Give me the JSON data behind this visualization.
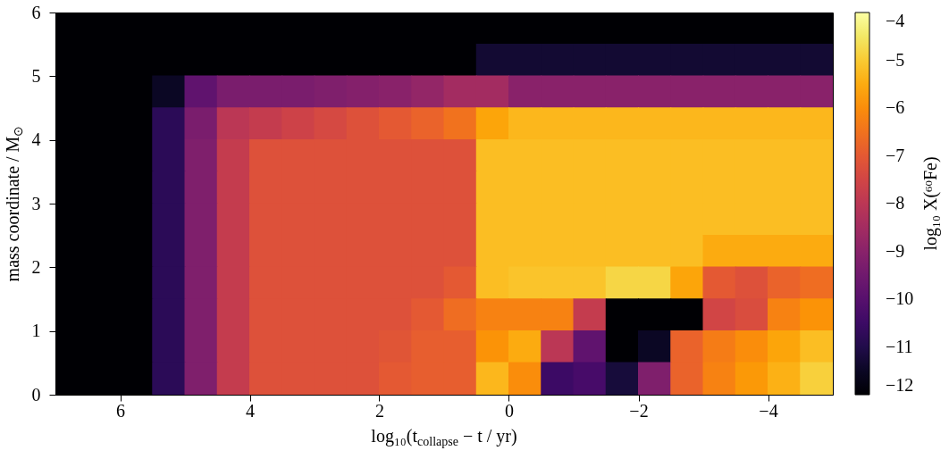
{
  "chart_data": {
    "type": "scatter",
    "xlabel": "log₁₀(t$_{collapse}$ − t / yr)",
    "ylabel": "mass coordinate / M$_{⊙}$",
    "clabel": "log₁₀ X(⁶⁰Fe)",
    "marker": "square",
    "xlim": [
      7,
      -5
    ],
    "ylim": [
      0,
      6
    ],
    "xticks": [
      6,
      4,
      2,
      0,
      {
        "value": -2,
        "label": "−2"
      },
      {
        "value": -4,
        "label": "−4"
      }
    ],
    "yticks": [
      0,
      1,
      2,
      3,
      4,
      5,
      6
    ],
    "clim": [
      -12,
      -4
    ],
    "cticks": [
      {
        "value": -12,
        "label": "−12"
      },
      {
        "value": -11,
        "label": "−11"
      },
      {
        "value": -10,
        "label": "−10"
      },
      {
        "value": -9,
        "label": "−9"
      },
      {
        "value": -8,
        "label": "−8"
      },
      {
        "value": -7,
        "label": "−7"
      },
      {
        "value": -6,
        "label": "−6"
      },
      {
        "value": -5,
        "label": "−5"
      },
      {
        "value": -4,
        "label": "−4"
      }
    ],
    "x": [
      6.75,
      6.25,
      5.75,
      5.25,
      4.75,
      4.25,
      3.75,
      3.25,
      2.75,
      2.25,
      1.75,
      1.25,
      0.75,
      0.25,
      -0.25,
      -0.75,
      -1.25,
      -1.75,
      -2.25,
      -2.75,
      -3.25,
      -3.75,
      -4.25,
      -4.75,
      6.75,
      6.25,
      5.75,
      5.25,
      4.75,
      4.25,
      3.75,
      3.25,
      2.75,
      2.25,
      1.75,
      1.25,
      0.75,
      0.25,
      -0.25,
      -0.75,
      -1.25,
      -1.75,
      -2.25,
      -2.75,
      -3.25,
      -3.75,
      -4.25,
      -4.75,
      6.75,
      6.25,
      5.75,
      5.25,
      4.75,
      4.25,
      3.75,
      3.25,
      2.75,
      2.25,
      1.75,
      1.25,
      0.75,
      0.25,
      -0.25,
      -0.75,
      -1.25,
      -1.75,
      -2.25,
      -2.75,
      -3.25,
      -3.75,
      -4.25,
      -4.75,
      6.75,
      6.25,
      5.75,
      5.25,
      4.75,
      4.25,
      3.75,
      3.25,
      2.75,
      2.25,
      1.75,
      1.25,
      0.75,
      0.25,
      -0.25,
      -0.75,
      -1.25,
      -1.75,
      -2.25,
      -2.75,
      -3.25,
      -3.75,
      -4.25,
      -4.75,
      6.75,
      6.25,
      5.75,
      5.25,
      4.75,
      4.25,
      3.75,
      3.25,
      2.75,
      2.25,
      1.75,
      1.25,
      0.75,
      0.25,
      -0.25,
      -0.75,
      -1.25,
      -1.75,
      -2.25,
      -2.75,
      -3.25,
      -3.75,
      -4.25,
      -4.75,
      6.75,
      6.25,
      5.75,
      5.25,
      4.75,
      4.25,
      3.75,
      3.25,
      2.75,
      2.25,
      1.75,
      1.25,
      0.75,
      0.25,
      -0.25,
      -0.75,
      -1.25,
      -1.75,
      -2.25,
      -2.75,
      -3.25,
      -3.75,
      -4.25,
      -4.75,
      6.75,
      6.25,
      5.75,
      5.25,
      4.75,
      4.25,
      3.75,
      3.25,
      2.75,
      2.25,
      1.75,
      1.25,
      0.75,
      0.25,
      -0.25,
      -0.75,
      -1.25,
      -1.75,
      -2.25,
      -2.75,
      -3.25,
      -3.75,
      -4.25,
      -4.75,
      6.75,
      6.25,
      5.75,
      5.25,
      4.75,
      4.25,
      3.75,
      3.25,
      2.75,
      2.25,
      1.75,
      1.25,
      0.75,
      0.25,
      -0.25,
      -0.75,
      -1.25,
      -1.75,
      -2.25,
      -2.75,
      -3.25,
      -3.75,
      -4.25,
      -4.75,
      6.75,
      6.25,
      5.75,
      5.25,
      4.75,
      4.25,
      3.75,
      3.25,
      2.75,
      2.25,
      1.75,
      1.25,
      0.75,
      0.25,
      -0.25,
      -0.75,
      -1.25,
      -1.75,
      -2.25,
      -2.75,
      -3.25,
      -3.75,
      -4.25,
      -4.75,
      6.75,
      6.25,
      5.75,
      5.25,
      4.75,
      4.25,
      3.75,
      3.25,
      2.75,
      2.25,
      1.75,
      1.25,
      0.75,
      0.25,
      -0.25,
      -0.75,
      -1.25,
      -1.75,
      -2.25,
      -2.75,
      -3.25,
      -3.75,
      -4.25,
      -4.75,
      6.75,
      6.25,
      5.75,
      5.25,
      4.75,
      4.25,
      3.75,
      3.25,
      2.75,
      2.25,
      1.75,
      1.25,
      0.75,
      0.25,
      -0.25,
      -0.75,
      -1.25,
      -1.75,
      -2.25,
      -2.75,
      -3.25,
      -3.75,
      -4.25,
      -4.75,
      6.75,
      6.25,
      5.75,
      5.25,
      4.75,
      4.25,
      3.75,
      3.25,
      2.75,
      2.25,
      1.75,
      1.25,
      0.75,
      0.25,
      -0.25,
      -0.75,
      -1.25,
      -1.75,
      -2.25,
      -2.75,
      -3.25,
      -3.75,
      -4.25,
      -4.75
    ],
    "values": [
      5.75,
      5.75,
      5.75,
      5.75,
      5.75,
      5.75,
      5.75,
      5.75,
      5.75,
      5.75,
      5.75,
      5.75,
      5.75,
      5.75,
      5.75,
      5.75,
      5.75,
      5.75,
      5.75,
      5.75,
      5.75,
      5.75,
      5.75,
      5.75,
      5.25,
      5.25,
      5.25,
      5.25,
      5.25,
      5.25,
      5.25,
      5.25,
      5.25,
      5.25,
      5.25,
      5.25,
      5.25,
      5.25,
      5.25,
      5.25,
      5.25,
      5.25,
      5.25,
      5.25,
      5.25,
      5.25,
      5.25,
      5.25,
      4.75,
      4.75,
      4.75,
      4.75,
      4.75,
      4.75,
      4.75,
      4.75,
      4.75,
      4.75,
      4.75,
      4.75,
      4.75,
      4.75,
      4.75,
      4.75,
      4.75,
      4.75,
      4.75,
      4.75,
      4.75,
      4.75,
      4.75,
      4.75,
      4.25,
      4.25,
      4.25,
      4.25,
      4.25,
      4.25,
      4.25,
      4.25,
      4.25,
      4.25,
      4.25,
      4.25,
      4.25,
      4.25,
      4.25,
      4.25,
      4.25,
      4.25,
      4.25,
      4.25,
      4.25,
      4.25,
      4.25,
      4.25,
      3.75,
      3.75,
      3.75,
      3.75,
      3.75,
      3.75,
      3.75,
      3.75,
      3.75,
      3.75,
      3.75,
      3.75,
      3.75,
      3.75,
      3.75,
      3.75,
      3.75,
      3.75,
      3.75,
      3.75,
      3.75,
      3.75,
      3.75,
      3.75,
      3.25,
      3.25,
      3.25,
      3.25,
      3.25,
      3.25,
      3.25,
      3.25,
      3.25,
      3.25,
      3.25,
      3.25,
      3.25,
      3.25,
      3.25,
      3.25,
      3.25,
      3.25,
      3.25,
      3.25,
      3.25,
      3.25,
      3.25,
      3.25,
      2.75,
      2.75,
      2.75,
      2.75,
      2.75,
      2.75,
      2.75,
      2.75,
      2.75,
      2.75,
      2.75,
      2.75,
      2.75,
      2.75,
      2.75,
      2.75,
      2.75,
      2.75,
      2.75,
      2.75,
      2.75,
      2.75,
      2.75,
      2.75,
      2.25,
      2.25,
      2.25,
      2.25,
      2.25,
      2.25,
      2.25,
      2.25,
      2.25,
      2.25,
      2.25,
      2.25,
      2.25,
      2.25,
      2.25,
      2.25,
      2.25,
      2.25,
      2.25,
      2.25,
      2.25,
      2.25,
      2.25,
      2.25,
      1.75,
      1.75,
      1.75,
      1.75,
      1.75,
      1.75,
      1.75,
      1.75,
      1.75,
      1.75,
      1.75,
      1.75,
      1.75,
      1.75,
      1.75,
      1.75,
      1.75,
      1.75,
      1.75,
      1.75,
      1.75,
      1.75,
      1.75,
      1.75,
      1.25,
      1.25,
      1.25,
      1.25,
      1.25,
      1.25,
      1.25,
      1.25,
      1.25,
      1.25,
      1.25,
      1.25,
      1.25,
      1.25,
      1.25,
      1.25,
      1.25,
      1.25,
      1.25,
      1.25,
      1.25,
      1.25,
      1.25,
      1.25,
      0.75,
      0.75,
      0.75,
      0.75,
      0.75,
      0.75,
      0.75,
      0.75,
      0.75,
      0.75,
      0.75,
      0.75,
      0.75,
      0.75,
      0.75,
      0.75,
      0.75,
      0.75,
      0.75,
      0.75,
      0.75,
      0.75,
      0.75,
      0.75,
      0.25,
      0.25,
      0.25,
      0.25,
      0.25,
      0.25,
      0.25,
      0.25,
      0.25,
      0.25,
      0.25,
      0.25,
      0.25,
      0.25,
      0.25,
      0.25,
      0.25,
      0.25,
      0.25,
      0.25,
      0.25,
      0.25,
      0.25,
      0.25
    ],
    "cvalues": [
      -12,
      -12,
      -12,
      -12,
      -12,
      -12,
      -12,
      -12,
      -12,
      -12,
      -12,
      -12,
      -12,
      -12,
      -12,
      -12,
      -12,
      -12,
      -12,
      -12,
      -12,
      -12,
      -12,
      -12,
      -12,
      -12,
      -12,
      -12,
      -12,
      -12,
      -12,
      -12,
      -12,
      -12,
      -12,
      -12,
      -12,
      -11.3,
      -11.3,
      -11.3,
      -11.3,
      -11.3,
      -11.3,
      -11.3,
      -11.3,
      -11.3,
      -11.3,
      -11.3,
      -12,
      -12,
      -12,
      -11.5,
      -9.8,
      -9.3,
      -9.3,
      -9.3,
      -9.2,
      -9.1,
      -9,
      -8.8,
      -8.5,
      -8.5,
      -9,
      -9,
      -9,
      -9,
      -9,
      -9,
      -9,
      -9,
      -9,
      -9,
      -12,
      -12,
      -12,
      -10.8,
      -9.3,
      -8,
      -7.8,
      -7.6,
      -7.4,
      -7.2,
      -7,
      -6.8,
      -6.5,
      -5.6,
      -5.3,
      -5.3,
      -5.3,
      -5.3,
      -5.3,
      -5.3,
      -5.3,
      -5.3,
      -5.3,
      -5.3,
      -12,
      -12,
      -12,
      -10.8,
      -9.2,
      -7.8,
      -7.2,
      -7.2,
      -7.2,
      -7.2,
      -7.2,
      -7.2,
      -7.2,
      -5.2,
      -5.2,
      -5.2,
      -5.2,
      -5.2,
      -5.2,
      -5.2,
      -5.2,
      -5.2,
      -5.2,
      -5.2,
      -12,
      -12,
      -12,
      -10.8,
      -9.2,
      -7.8,
      -7.2,
      -7.2,
      -7.2,
      -7.2,
      -7.2,
      -7.2,
      -7.2,
      -5.2,
      -5.2,
      -5.2,
      -5.2,
      -5.2,
      -5.2,
      -5.2,
      -5.2,
      -5.2,
      -5.2,
      -5.2,
      -12,
      -12,
      -12,
      -10.8,
      -9.2,
      -7.8,
      -7.2,
      -7.2,
      -7.2,
      -7.2,
      -7.2,
      -7.2,
      -7.2,
      -5.2,
      -5.2,
      -5.2,
      -5.2,
      -5.2,
      -5.2,
      -5.2,
      -5.2,
      -5.2,
      -5.2,
      -5.2,
      -12,
      -12,
      -12,
      -10.8,
      -9.2,
      -7.8,
      -7.2,
      -7.2,
      -7.2,
      -7.2,
      -7.2,
      -7.2,
      -7.2,
      -5.2,
      -5.2,
      -5.2,
      -5.2,
      -5.2,
      -5.2,
      -5.2,
      -5.5,
      -5.5,
      -5.5,
      -5.5,
      -12,
      -12,
      -12,
      -10.8,
      -9.2,
      -7.8,
      -7.2,
      -7.2,
      -7.2,
      -7.2,
      -7.2,
      -7.2,
      -7,
      -5.2,
      -5.1,
      -5.1,
      -5.1,
      -4.8,
      -4.8,
      -5.6,
      -7,
      -7.2,
      -6.8,
      -6.6,
      -12,
      -12,
      -12,
      -10.8,
      -9.2,
      -7.8,
      -7.2,
      -7.2,
      -7.2,
      -7.2,
      -7.2,
      -7,
      -6.6,
      -6.2,
      -6.2,
      -6.2,
      -7.8,
      -12,
      -12,
      -12,
      -7.5,
      -7.3,
      -6.2,
      -5.9,
      -12,
      -12,
      -12,
      -10.8,
      -9.2,
      -7.8,
      -7.2,
      -7.2,
      -7.2,
      -7.2,
      -7.1,
      -6.9,
      -6.9,
      -5.9,
      -5.5,
      -8,
      -9.8,
      -12,
      -11.5,
      -6.8,
      -6.3,
      -6,
      -5.6,
      -5.2,
      -12,
      -12,
      -12,
      -10.8,
      -9.2,
      -7.8,
      -7.2,
      -7.2,
      -7.2,
      -7.2,
      -7,
      -6.9,
      -6.9,
      -5.3,
      -6,
      -10.5,
      -10.3,
      -11.2,
      -9.2,
      -6.8,
      -6.2,
      -5.8,
      -5.4,
      -4.9
    ]
  }
}
